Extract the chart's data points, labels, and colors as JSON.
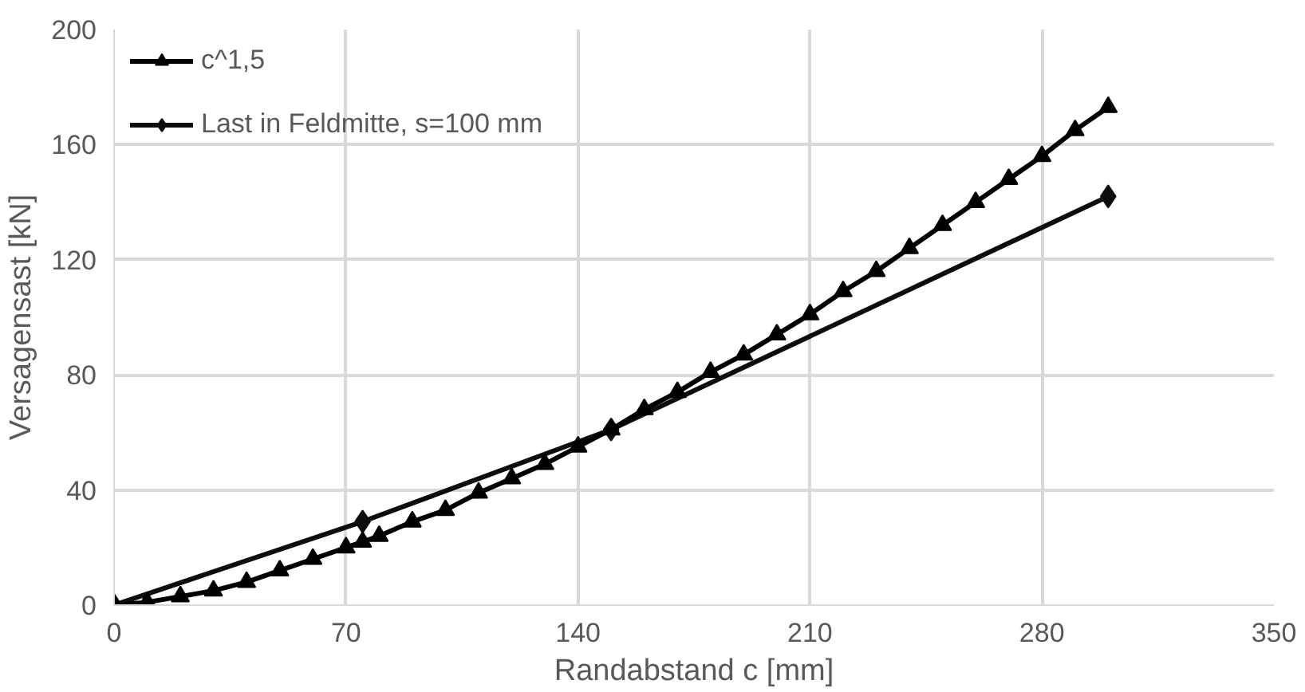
{
  "chart_data": {
    "type": "line",
    "xlabel": "Randabstand c [mm]",
    "ylabel": "Versagensast [kN]",
    "xlim": [
      0,
      350
    ],
    "xticks": [
      0,
      70,
      140,
      210,
      280,
      350
    ],
    "ylim": [
      0,
      200
    ],
    "yticks": [
      0,
      40,
      80,
      120,
      160,
      200
    ],
    "grid": true,
    "legend": "top left",
    "line_style": "solid",
    "series": [
      {
        "name": "c^1,5",
        "color": "#000000",
        "marker": "triangle",
        "x": [
          0,
          10,
          20,
          30,
          40,
          50,
          60,
          70,
          75,
          80,
          90,
          100,
          110,
          120,
          130,
          140,
          150,
          160,
          170,
          180,
          190,
          200,
          210,
          220,
          230,
          240,
          250,
          260,
          270,
          280,
          290,
          300
        ],
        "values": [
          0,
          1,
          3,
          5,
          8,
          12,
          16,
          20,
          22,
          24,
          29,
          33,
          39,
          44,
          49,
          55,
          61,
          68,
          74,
          81,
          87,
          94,
          101,
          109,
          116,
          124,
          132,
          140,
          148,
          156,
          165,
          173
        ]
      },
      {
        "name": "Last in Feldmitte, s=100 mm",
        "color": "#0d0d0d",
        "marker": "diamond",
        "x": [
          0,
          75,
          150,
          300
        ],
        "values": [
          0,
          29,
          61,
          142
        ]
      }
    ]
  }
}
